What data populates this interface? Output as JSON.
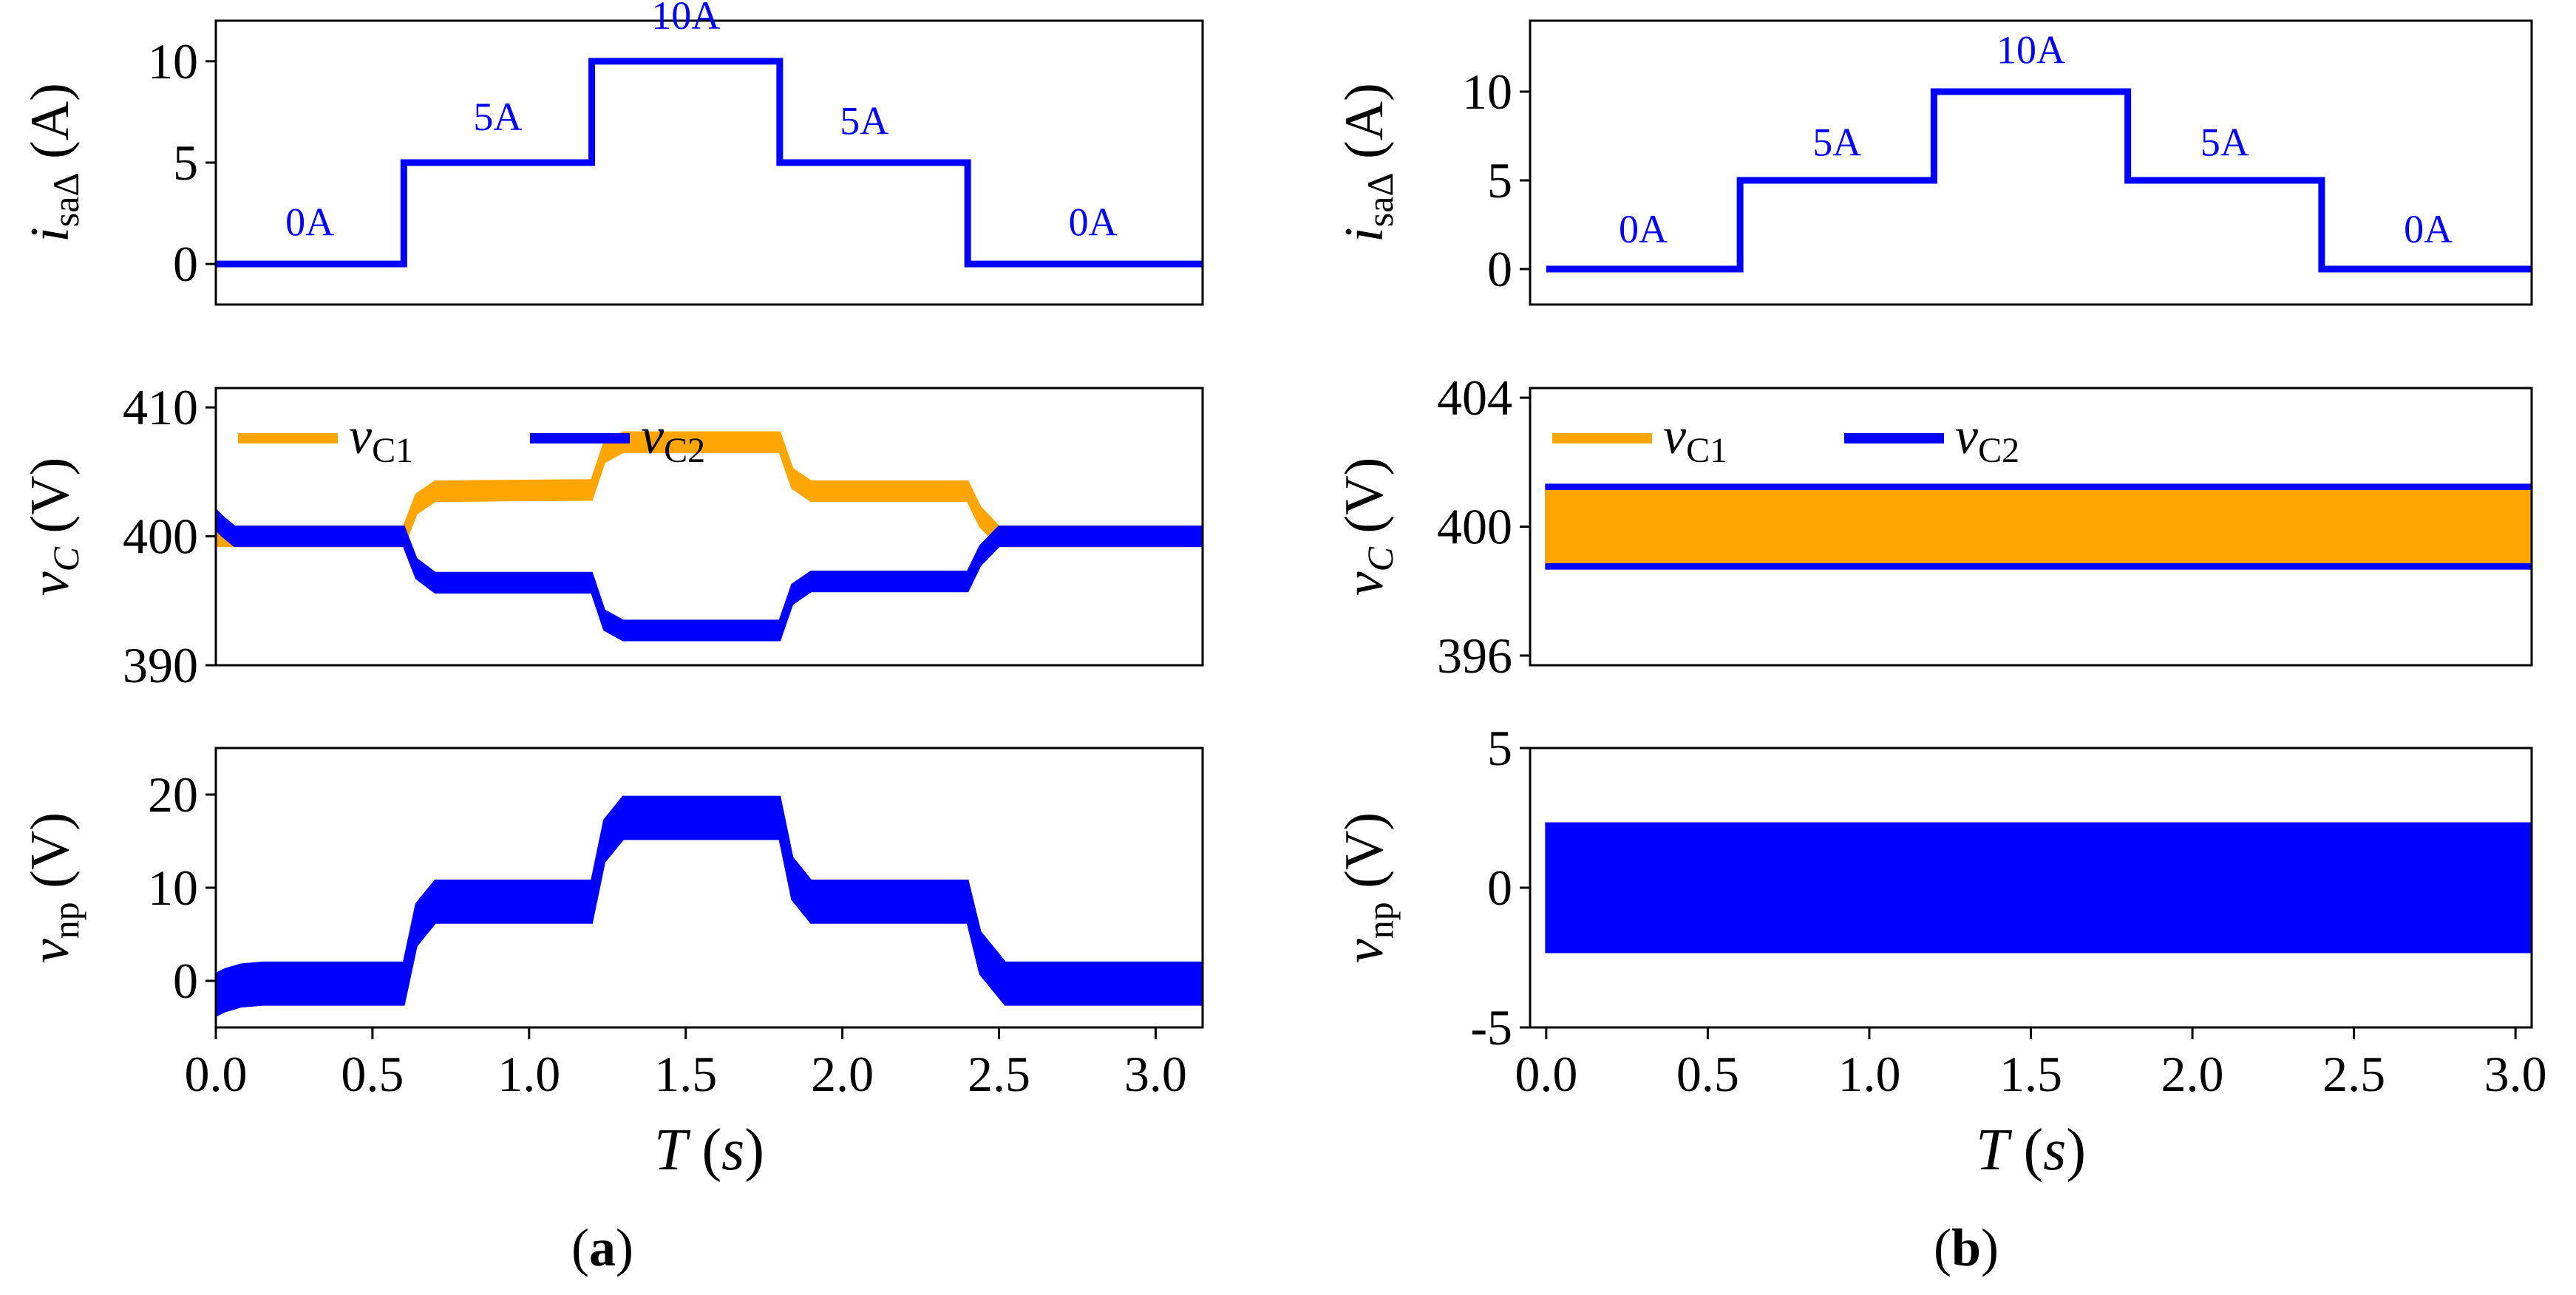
{
  "chart_data": [
    {
      "panel": "a",
      "row": 1,
      "type": "line",
      "ylabel_main": "i",
      "ylabel_sub": "saΔ",
      "ylabel_unit": "(A)",
      "ylim": [
        -2,
        12
      ],
      "xlim": [
        0,
        3.15
      ],
      "yticks": [
        "0",
        "5",
        "10"
      ],
      "yticks_v": [
        0,
        5,
        10
      ],
      "series": [
        {
          "color": "#0000FF",
          "x": [
            0,
            0.6,
            0.6,
            1.2,
            1.2,
            1.8,
            1.8,
            2.4,
            2.4,
            3.15
          ],
          "y": [
            0,
            0,
            5,
            5,
            10,
            10,
            5,
            5,
            0,
            0
          ]
        }
      ],
      "annotations": [
        {
          "text": "0A",
          "x": 0.3,
          "y": 1.4
        },
        {
          "text": "5A",
          "x": 0.9,
          "y": 6.6
        },
        {
          "text": "10A",
          "x": 1.5,
          "y": 11.6
        },
        {
          "text": "5A",
          "x": 2.07,
          "y": 6.4
        },
        {
          "text": "0A",
          "x": 2.8,
          "y": 1.4
        }
      ]
    },
    {
      "panel": "a",
      "row": 2,
      "type": "line",
      "ylabel_main": "v",
      "ylabel_sub": "C",
      "ylabel_unit": "(V)",
      "ylim": [
        390,
        411.5
      ],
      "xlim": [
        0,
        3.15
      ],
      "yticks": [
        "390",
        "400",
        "410"
      ],
      "yticks_v": [
        390,
        400,
        410
      ],
      "legend": [
        "v",
        "v"
      ],
      "legend_subs": [
        "C1",
        "C2"
      ],
      "series": [
        {
          "name": "vC1",
          "color": "#FFA500",
          "band": 1.5,
          "x": [
            0,
            0.6,
            0.64,
            0.7,
            1.2,
            1.24,
            1.3,
            1.8,
            1.84,
            1.9,
            2.4,
            2.44,
            2.5,
            3.15
          ],
          "y": [
            400,
            400,
            402.5,
            403.5,
            403.6,
            406.5,
            407.3,
            407.3,
            404.5,
            403.5,
            403.5,
            401.5,
            400,
            400
          ]
        },
        {
          "name": "vC2",
          "color": "#0000FF",
          "band": 1.5,
          "x": [
            0,
            0.02,
            0.06,
            0.12,
            0.6,
            0.64,
            0.7,
            1.2,
            1.24,
            1.3,
            1.8,
            1.84,
            1.9,
            2.4,
            2.44,
            2.5,
            3.15
          ],
          "y": [
            401.3,
            400.8,
            400,
            400,
            400,
            397.5,
            396.4,
            396.4,
            393.5,
            392.7,
            392.7,
            395.5,
            396.5,
            396.5,
            398.5,
            400,
            400
          ]
        }
      ]
    },
    {
      "panel": "a",
      "row": 3,
      "type": "line",
      "ylabel_main": "v",
      "ylabel_sub": "np",
      "ylabel_unit": "(V)",
      "ylim": [
        -5,
        25
      ],
      "xlim": [
        0,
        3.15
      ],
      "yticks": [
        "0",
        "10",
        "20"
      ],
      "yticks_v": [
        0,
        10,
        20
      ],
      "xticks": [
        "0.0",
        "0.5",
        "1.0",
        "1.5",
        "2.0",
        "2.5",
        "3.0"
      ],
      "xticks_v": [
        0,
        0.5,
        1.0,
        1.5,
        2.0,
        2.5,
        3.0
      ],
      "xlabel_main": "T",
      "xlabel_unit": "s",
      "series": [
        {
          "color": "#0000FF",
          "band": 4.5,
          "x": [
            0,
            0.03,
            0.08,
            0.15,
            0.6,
            0.64,
            0.7,
            1.2,
            1.24,
            1.3,
            1.8,
            1.84,
            1.9,
            2.4,
            2.44,
            2.52,
            3.15
          ],
          "y": [
            -1.5,
            -1.0,
            -0.5,
            -0.3,
            -0.3,
            6.0,
            8.5,
            8.5,
            15.0,
            17.5,
            17.5,
            11.0,
            8.5,
            8.5,
            3.0,
            -0.3,
            -0.3
          ]
        }
      ]
    },
    {
      "panel": "b",
      "row": 1,
      "type": "line",
      "ylabel_main": "i",
      "ylabel_sub": "saΔ",
      "ylabel_unit": "(A)",
      "ylim": [
        -2,
        14
      ],
      "xlim": [
        -0.05,
        3.05
      ],
      "yticks": [
        "0",
        "5",
        "10"
      ],
      "yticks_v": [
        0,
        5,
        10
      ],
      "series": [
        {
          "color": "#0000FF",
          "x": [
            0,
            0.6,
            0.6,
            1.2,
            1.2,
            1.8,
            1.8,
            2.4,
            2.4,
            3.05
          ],
          "y": [
            0,
            0,
            5,
            5,
            10,
            10,
            5,
            5,
            0,
            0
          ]
        }
      ],
      "annotations": [
        {
          "text": "0A",
          "x": 0.3,
          "y": 1.5
        },
        {
          "text": "5A",
          "x": 0.9,
          "y": 6.4
        },
        {
          "text": "10A",
          "x": 1.5,
          "y": 11.6
        },
        {
          "text": "5A",
          "x": 2.1,
          "y": 6.4
        },
        {
          "text": "0A",
          "x": 2.73,
          "y": 1.5
        }
      ]
    },
    {
      "panel": "b",
      "row": 2,
      "type": "line",
      "ylabel_main": "v",
      "ylabel_sub": "C",
      "ylabel_unit": "(V)",
      "ylim": [
        395.7,
        404.3
      ],
      "xlim": [
        -0.05,
        3.05
      ],
      "yticks": [
        "396",
        "400",
        "404"
      ],
      "yticks_v": [
        396,
        400,
        404
      ],
      "legend": [
        "v",
        "v"
      ],
      "legend_subs": [
        "C1",
        "C2"
      ],
      "series": [
        {
          "name": "vC2",
          "color": "#0000FF",
          "band": 2.6,
          "x": [
            0,
            0.05,
            0.15,
            1.2,
            1.22,
            1.8,
            1.82,
            3.05
          ],
          "y": [
            400,
            400,
            400,
            400,
            400,
            400,
            400,
            400
          ]
        },
        {
          "name": "vC1",
          "color": "#FFA500",
          "band": 2.2,
          "x": [
            0,
            0.05,
            0.15,
            1.2,
            1.22,
            1.8,
            1.82,
            3.05
          ],
          "y": [
            400,
            400,
            400,
            400,
            400,
            400,
            400,
            400
          ]
        }
      ]
    },
    {
      "panel": "b",
      "row": 3,
      "type": "line",
      "ylabel_main": "v",
      "ylabel_sub": "np",
      "ylabel_unit": "(V)",
      "ylim": [
        -5,
        5
      ],
      "xlim": [
        -0.05,
        3.05
      ],
      "yticks": [
        "-5",
        "0",
        "5"
      ],
      "yticks_v": [
        -5,
        0,
        5
      ],
      "xticks": [
        "0.0",
        "0.5",
        "1.0",
        "1.5",
        "2.0",
        "2.5",
        "3.0"
      ],
      "xticks_v": [
        0,
        0.5,
        1.0,
        1.5,
        2.0,
        2.5,
        3.0
      ],
      "xlabel_main": "T",
      "xlabel_unit": "s",
      "series": [
        {
          "color": "#0000FF",
          "band": 4.6,
          "x": [
            0,
            0.03,
            0.15,
            0.6,
            0.62,
            1.2,
            1.22,
            1.8,
            1.82,
            2.4,
            2.42,
            3.05
          ],
          "y": [
            0,
            0,
            0,
            0,
            0,
            0,
            0,
            0,
            0,
            0,
            0,
            0
          ]
        }
      ]
    }
  ],
  "captions": {
    "a": "a",
    "b": "b"
  }
}
